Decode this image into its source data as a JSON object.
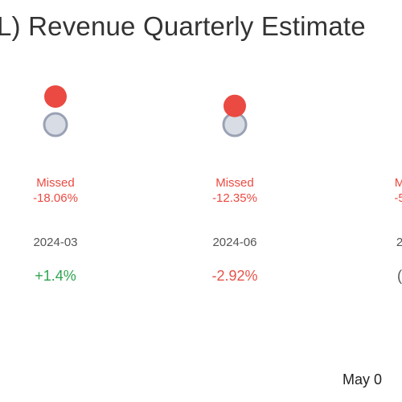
{
  "title": "L) Revenue Quarterly Estimate",
  "footer_date": "May 0",
  "colors": {
    "missed": "#ea4a41",
    "estimate_fill": "#d8dce4",
    "estimate_stroke": "#9aa2b4",
    "positive": "#2ea44f",
    "negative": "#e5534b",
    "period": "#555555"
  },
  "chart_data": {
    "type": "scatter",
    "title": "L) Revenue Quarterly Estimate",
    "columns": [
      {
        "period": "2024-03",
        "status": "Missed",
        "surprise": "-18.06%",
        "change": "+1.4%",
        "estimate": 1.0,
        "actual": 0.82
      },
      {
        "period": "2024-06",
        "status": "Missed",
        "surprise": "-12.35%",
        "change": "-2.92%",
        "estimate": 1.0,
        "actual": 0.88
      },
      {
        "period": "2",
        "status": "M",
        "surprise": "-5",
        "change": "(",
        "estimate": null,
        "actual": null
      }
    ]
  }
}
